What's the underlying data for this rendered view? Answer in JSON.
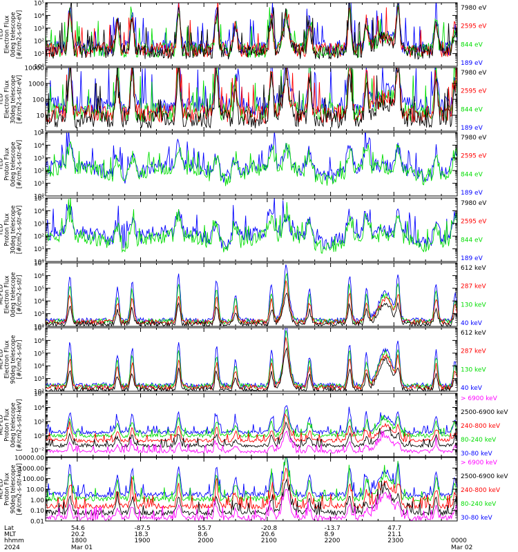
{
  "colors": {
    "black": "#000000",
    "red": "#ff0000",
    "green": "#00dd00",
    "blue": "#0000ff",
    "magenta": "#ff00ff"
  },
  "chart_data": [
    {
      "type": "line",
      "ylabel": [
        "TED",
        "Electron Flux",
        "0deg telescope",
        "[#/cm2-s-str-eV]"
      ],
      "yscale": "log",
      "ylim": [
        1,
        100000
      ],
      "ytick_labels": [
        "10⁰",
        "10¹",
        "10²",
        "10³",
        "10⁴",
        "10⁵"
      ],
      "ytick_values": [
        1,
        10,
        100,
        1000,
        10000,
        100000
      ],
      "legend": [
        {
          "label": "7980 eV",
          "color": "#000000"
        },
        {
          "label": "2595 eV",
          "color": "#ff0000"
        },
        {
          "label": "844 eV",
          "color": "#00dd00"
        },
        {
          "label": "189 eV",
          "color": "#0000ff"
        }
      ],
      "profile": "ted_e",
      "series": [
        {
          "color": "#0000ff",
          "level": 30
        },
        {
          "color": "#00dd00",
          "level": 18
        },
        {
          "color": "#ff0000",
          "level": 20
        },
        {
          "color": "#000000",
          "level": 14
        }
      ]
    },
    {
      "type": "line",
      "ylabel": [
        "TED",
        "Electron Flux",
        "30deg telescope",
        "[#/cm2-s-str-eV]"
      ],
      "yscale": "log",
      "ylim": [
        1,
        10000
      ],
      "ytick_labels": [
        "1",
        "10",
        "100",
        "1000",
        "10000"
      ],
      "ytick_values": [
        1,
        10,
        100,
        1000,
        10000
      ],
      "legend": [
        {
          "label": "7980 eV",
          "color": "#000000"
        },
        {
          "label": "2595 eV",
          "color": "#ff0000"
        },
        {
          "label": "844 eV",
          "color": "#00dd00"
        },
        {
          "label": "189 eV",
          "color": "#0000ff"
        }
      ],
      "profile": "ted_e",
      "series": [
        {
          "color": "#0000ff",
          "level": 40
        },
        {
          "color": "#00dd00",
          "level": 15
        },
        {
          "color": "#ff0000",
          "level": 12
        },
        {
          "color": "#000000",
          "level": 6
        }
      ]
    },
    {
      "type": "line",
      "ylabel": [
        "TED",
        "Proton Flux",
        "0deg telescope",
        "[#/cm2-s-str-eV]"
      ],
      "yscale": "log",
      "ylim": [
        1,
        100000
      ],
      "ytick_labels": [
        "10⁰",
        "10¹",
        "10²",
        "10³",
        "10⁴",
        "10⁵"
      ],
      "ytick_values": [
        1,
        10,
        100,
        1000,
        10000,
        100000
      ],
      "legend": [
        {
          "label": "7980 eV",
          "color": "#000000"
        },
        {
          "label": "2595 eV",
          "color": "#ff0000"
        },
        {
          "label": "844 eV",
          "color": "#00dd00"
        },
        {
          "label": "189 eV",
          "color": "#0000ff"
        }
      ],
      "profile": "ted_p",
      "series": [
        {
          "color": "#0000ff",
          "level": 150
        },
        {
          "color": "#00dd00",
          "level": 90
        }
      ]
    },
    {
      "type": "line",
      "ylabel": [
        "TED",
        "Proton Flux",
        "30deg telescope",
        "[#/cm2-s-str-eV]"
      ],
      "yscale": "log",
      "ylim": [
        1,
        100000
      ],
      "ytick_labels": [
        "10⁰",
        "10¹",
        "10²",
        "10³",
        "10⁴",
        "10⁵"
      ],
      "ytick_values": [
        1,
        10,
        100,
        1000,
        10000,
        100000
      ],
      "legend": [
        {
          "label": "7980 eV",
          "color": "#000000"
        },
        {
          "label": "2595 eV",
          "color": "#ff0000"
        },
        {
          "label": "844 eV",
          "color": "#00dd00"
        },
        {
          "label": "189 eV",
          "color": "#0000ff"
        }
      ],
      "profile": "ted_p",
      "series": [
        {
          "color": "#0000ff",
          "level": 130
        },
        {
          "color": "#00dd00",
          "level": 60
        }
      ]
    },
    {
      "type": "line",
      "ylabel": [
        "MEPED",
        "Electron Flux",
        "0deg telescope",
        "[#/cm2-s-str]"
      ],
      "yscale": "log",
      "ylim": [
        100,
        10000000
      ],
      "ytick_labels": [
        "10²",
        "10³",
        "10⁴",
        "10⁵",
        "10⁶",
        "10⁷"
      ],
      "ytick_values": [
        100,
        1000,
        10000,
        100000,
        1000000,
        10000000
      ],
      "legend": [
        {
          "label": "612 keV",
          "color": "#000000"
        },
        {
          "label": "287 keV",
          "color": "#ff0000"
        },
        {
          "label": "130 keV",
          "color": "#00dd00"
        },
        {
          "label": "40 keV",
          "color": "#0000ff"
        }
      ],
      "profile": "meped_e0",
      "series": [
        {
          "color": "#0000ff",
          "level": 300
        },
        {
          "color": "#00dd00",
          "level": 250
        },
        {
          "color": "#ff0000",
          "level": 220
        },
        {
          "color": "#000000",
          "level": 150
        }
      ]
    },
    {
      "type": "line",
      "ylabel": [
        "MEPED",
        "Electron Flux",
        "90deg telescope",
        "[#/cm2-s-str]"
      ],
      "yscale": "log",
      "ylim": [
        100,
        10000000
      ],
      "ytick_labels": [
        "10²",
        "10³",
        "10⁴",
        "10⁵",
        "10⁶",
        "10⁷"
      ],
      "ytick_values": [
        100,
        1000,
        10000,
        100000,
        1000000,
        10000000
      ],
      "legend": [
        {
          "label": "612 keV",
          "color": "#000000"
        },
        {
          "label": "287 keV",
          "color": "#ff0000"
        },
        {
          "label": "130 keV",
          "color": "#00dd00"
        },
        {
          "label": "40 keV",
          "color": "#0000ff"
        }
      ],
      "profile": "meped_e90",
      "series": [
        {
          "color": "#0000ff",
          "level": 300
        },
        {
          "color": "#00dd00",
          "level": 250
        },
        {
          "color": "#ff0000",
          "level": 200
        },
        {
          "color": "#000000",
          "level": 130
        }
      ]
    },
    {
      "type": "line",
      "ylabel": [
        "MEPED",
        "Proton Flux",
        "0deg telescope",
        "[#/cm2-s-str-keV]"
      ],
      "yscale": "log",
      "ylim": [
        0.001,
        1000000
      ],
      "ytick_labels": [
        "10⁻²",
        "10⁰",
        "10²",
        "10⁴",
        "10⁶"
      ],
      "ytick_values": [
        0.01,
        1,
        100,
        10000,
        1000000
      ],
      "legend": [
        {
          "label": "> 6900 keV",
          "color": "#ff00ff"
        },
        {
          "label": "2500-6900 keV",
          "color": "#000000"
        },
        {
          "label": "240-800 keV",
          "color": "#ff0000"
        },
        {
          "label": "80-240 keV",
          "color": "#00dd00"
        },
        {
          "label": "30-80 keV",
          "color": "#0000ff"
        }
      ],
      "profile": "meped_p",
      "series": [
        {
          "color": "#0000ff",
          "level": 3
        },
        {
          "color": "#00dd00",
          "level": 1
        },
        {
          "color": "#ff0000",
          "level": 0.2
        },
        {
          "color": "#000000",
          "level": 0.04
        },
        {
          "color": "#ff00ff",
          "level": 0.006
        }
      ]
    },
    {
      "type": "line",
      "ylabel": [
        "MEPED",
        "Proton Flux",
        "90deg telescope",
        "[#/cm2-s-str-keV]"
      ],
      "yscale": "log",
      "ylim": [
        0.01,
        10000
      ],
      "ytick_labels": [
        "0.01",
        "0.10",
        "1.00",
        "10.00",
        "100.00",
        "1000.00",
        "10000.00"
      ],
      "ytick_values": [
        0.01,
        0.1,
        1,
        10,
        100,
        1000,
        10000
      ],
      "legend": [
        {
          "label": "> 6900 keV",
          "color": "#ff00ff"
        },
        {
          "label": "2500-6900 keV",
          "color": "#000000"
        },
        {
          "label": "240-800 keV",
          "color": "#ff0000"
        },
        {
          "label": "80-240 keV",
          "color": "#00dd00"
        },
        {
          "label": "30-80 keV",
          "color": "#0000ff"
        }
      ],
      "profile": "meped_p",
      "series": [
        {
          "color": "#0000ff",
          "level": 3
        },
        {
          "color": "#00dd00",
          "level": 1.2
        },
        {
          "color": "#ff0000",
          "level": 0.25
        },
        {
          "color": "#000000",
          "level": 0.06
        },
        {
          "color": "#ff00ff",
          "level": 0.02
        }
      ]
    }
  ],
  "x_axis": {
    "time_range": [
      "2024-03-01 17:30",
      "2024-03-02 00:00"
    ],
    "tick_times": [
      "18:00",
      "19:00",
      "20:00",
      "21:00",
      "22:00",
      "23:00",
      "00:00"
    ],
    "row_labels": [
      "Lat",
      "MLT",
      "hhmm",
      "2024"
    ],
    "columns": [
      {
        "lat": "54.6",
        "mlt": "20.2",
        "hhmm": "1800",
        "date": "Mar 01"
      },
      {
        "lat": "-87.5",
        "mlt": "18.3",
        "hhmm": "1900",
        "date": ""
      },
      {
        "lat": "55.7",
        "mlt": "8.6",
        "hhmm": "2000",
        "date": ""
      },
      {
        "lat": "-20.8",
        "mlt": "20.6",
        "hhmm": "2100",
        "date": ""
      },
      {
        "lat": "-13.7",
        "mlt": "8.9",
        "hhmm": "2200",
        "date": ""
      },
      {
        "lat": "47.7",
        "mlt": "21.1",
        "hhmm": "2300",
        "date": ""
      },
      {
        "lat": "",
        "mlt": "",
        "hhmm": "0000",
        "date": "Mar 02"
      }
    ]
  },
  "events": [
    {
      "time": "17:53",
      "strength": 1.0
    },
    {
      "time": "18:38",
      "strength": 0.7
    },
    {
      "time": "18:52",
      "strength": 0.85
    },
    {
      "time": "19:36",
      "strength": 1.0
    },
    {
      "time": "20:12",
      "strength": 0.9
    },
    {
      "time": "20:30",
      "strength": 0.6
    },
    {
      "time": "21:04",
      "strength": 0.8
    },
    {
      "time": "21:18",
      "strength": 0.6
    },
    {
      "time": "21:40",
      "strength": 0.7
    },
    {
      "time": "22:18",
      "strength": 1.0
    },
    {
      "time": "22:34",
      "strength": 0.7
    },
    {
      "time": "23:04",
      "strength": 0.9
    },
    {
      "time": "23:40",
      "strength": 0.8
    },
    {
      "time": "23:58",
      "strength": 0.6
    }
  ],
  "radiation_belt_passes": [
    {
      "time": "21:18",
      "width_min": 5
    },
    {
      "time": "22:52",
      "width_min": 9
    }
  ]
}
